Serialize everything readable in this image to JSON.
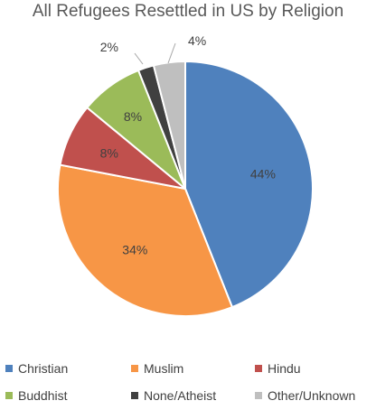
{
  "chart_data": {
    "type": "pie",
    "title": "All Refugees Resettled in US by Religion",
    "slices": [
      {
        "label": "Christian",
        "value": 44,
        "display": "44%",
        "color": "#4f81bd"
      },
      {
        "label": "Muslim",
        "value": 34,
        "display": "34%",
        "color": "#f79646"
      },
      {
        "label": "Hindu",
        "value": 8,
        "display": "8%",
        "color": "#c0504d"
      },
      {
        "label": "Buddhist",
        "value": 8,
        "display": "8%",
        "color": "#9bbb59"
      },
      {
        "label": "None/Atheist",
        "value": 2,
        "display": "2%",
        "color": "#404040"
      },
      {
        "label": "Other/Unknown",
        "value": 4,
        "display": "4%",
        "color": "#bfbfbf"
      }
    ],
    "legend_position": "bottom"
  }
}
